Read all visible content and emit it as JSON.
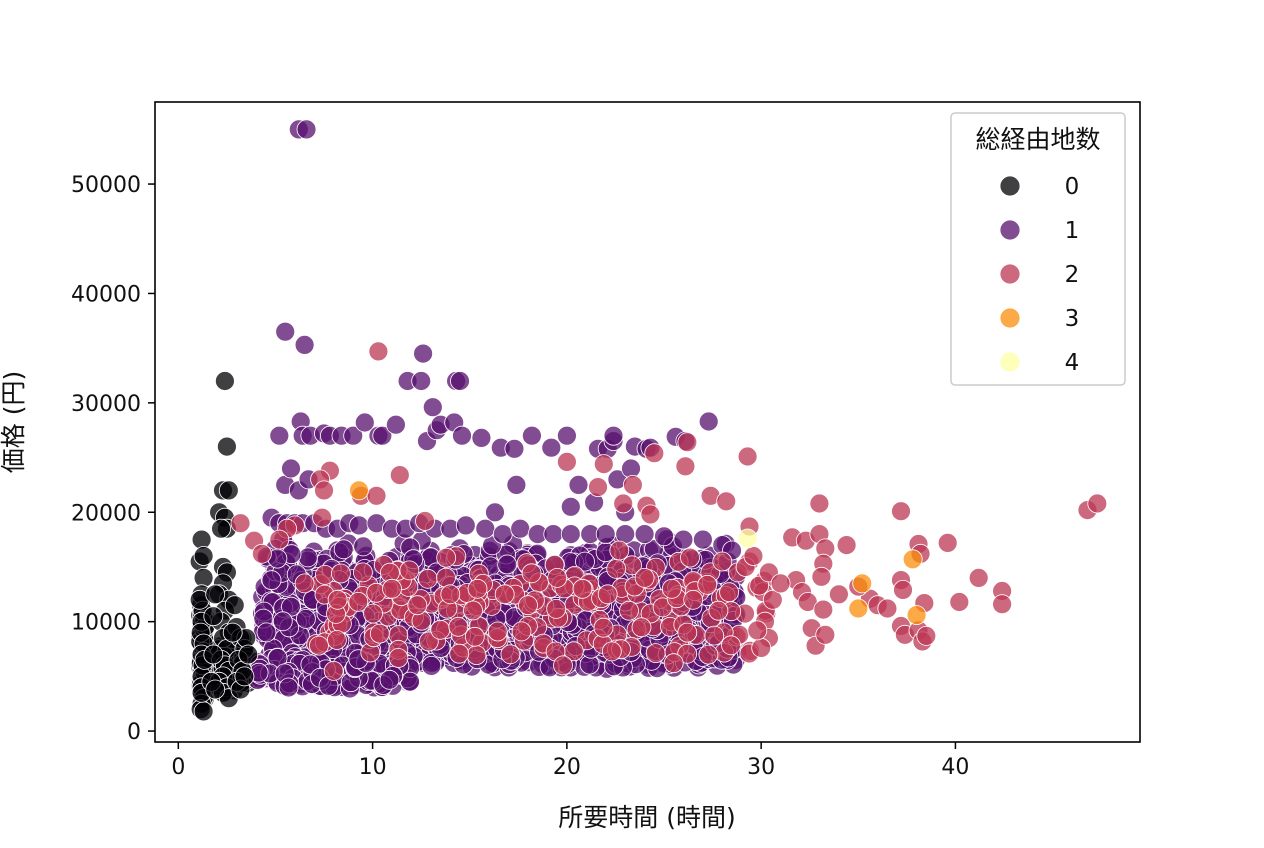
{
  "chart_data": {
    "type": "scatter",
    "title": "",
    "xlabel": "所要時間 (時間)",
    "ylabel": "価格 (円)",
    "xlim": [
      -1.2,
      49.5
    ],
    "ylim": [
      -1000,
      57500
    ],
    "xticks": [
      0,
      10,
      20,
      30,
      40
    ],
    "yticks": [
      0,
      10000,
      20000,
      30000,
      40000,
      50000
    ],
    "grid": false,
    "marker_alpha": 0.75,
    "legend": {
      "title": "総経由地数",
      "placement": "top-right",
      "entries": [
        {
          "label": "0",
          "color": "#000004"
        },
        {
          "label": "1",
          "color": "#57106e"
        },
        {
          "label": "2",
          "color": "#bc3754"
        },
        {
          "label": "3",
          "color": "#f98e09"
        },
        {
          "label": "4",
          "color": "#fcffa4"
        }
      ]
    },
    "series": [
      {
        "name": "0",
        "color": "#000004",
        "points": [
          [
            1.2,
            17500
          ],
          [
            1.1,
            15500
          ],
          [
            1.3,
            14000
          ],
          [
            1.2,
            12500
          ],
          [
            1.25,
            11000
          ],
          [
            1.2,
            10000
          ],
          [
            1.15,
            9000
          ],
          [
            1.3,
            8000
          ],
          [
            1.2,
            7000
          ],
          [
            1.25,
            6000
          ],
          [
            1.2,
            5000
          ],
          [
            1.2,
            4000
          ],
          [
            1.3,
            3000
          ],
          [
            1.2,
            2500
          ],
          [
            1.15,
            2000
          ],
          [
            1.3,
            1800
          ],
          [
            1.35,
            6500
          ],
          [
            1.1,
            12000
          ],
          [
            1.3,
            16000
          ],
          [
            1.2,
            3500
          ],
          [
            2.4,
            32000
          ],
          [
            2.5,
            26000
          ],
          [
            2.3,
            22000
          ],
          [
            2.6,
            22000
          ],
          [
            2.1,
            20000
          ],
          [
            2.4,
            19500
          ],
          [
            2.5,
            18500
          ],
          [
            2.2,
            18500
          ],
          [
            2.3,
            15000
          ],
          [
            2.5,
            14500
          ],
          [
            2.3,
            13500
          ],
          [
            2.1,
            12500
          ],
          [
            2.6,
            12000
          ],
          [
            2.4,
            11000
          ],
          [
            2.2,
            10000
          ],
          [
            2.6,
            9000
          ],
          [
            2.3,
            8500
          ],
          [
            2.5,
            7500
          ],
          [
            2.2,
            6500
          ],
          [
            2.4,
            6000
          ],
          [
            2.6,
            5500
          ],
          [
            2.3,
            5000
          ],
          [
            2.1,
            4500
          ],
          [
            2.5,
            4000
          ],
          [
            2.3,
            3500
          ],
          [
            2.6,
            3000
          ],
          [
            1.8,
            7000
          ],
          [
            1.7,
            4500
          ],
          [
            1.9,
            3800
          ],
          [
            1.8,
            10500
          ],
          [
            1.9,
            12500
          ],
          [
            3.0,
            9500
          ],
          [
            3.2,
            8500
          ],
          [
            3.4,
            7500
          ],
          [
            3.1,
            6500
          ],
          [
            3.3,
            5500
          ],
          [
            3.0,
            4500
          ],
          [
            3.2,
            3800
          ],
          [
            2.9,
            11500
          ],
          [
            3.5,
            8500
          ],
          [
            3.4,
            5000
          ],
          [
            2.8,
            9000
          ],
          [
            3.6,
            7000
          ]
        ]
      },
      {
        "name": "1",
        "color": "#57106e",
        "points": [
          [
            6.2,
            55000
          ],
          [
            6.6,
            55000
          ],
          [
            5.5,
            36500
          ],
          [
            6.5,
            35300
          ],
          [
            5.2,
            27000
          ],
          [
            6.3,
            28300
          ],
          [
            6.4,
            27000
          ],
          [
            6.8,
            27000
          ],
          [
            7.5,
            27200
          ],
          [
            7.8,
            27000
          ],
          [
            8.4,
            27000
          ],
          [
            9.0,
            27000
          ],
          [
            9.6,
            28200
          ],
          [
            10.3,
            27000
          ],
          [
            10.5,
            27000
          ],
          [
            11.2,
            28000
          ],
          [
            11.8,
            32000
          ],
          [
            12.5,
            32000
          ],
          [
            12.6,
            34500
          ],
          [
            12.8,
            26500
          ],
          [
            13.1,
            29600
          ],
          [
            13.3,
            27500
          ],
          [
            13.5,
            28000
          ],
          [
            14.2,
            28200
          ],
          [
            14.3,
            32000
          ],
          [
            14.5,
            32000
          ],
          [
            14.6,
            27000
          ],
          [
            15.6,
            26800
          ],
          [
            16.6,
            25900
          ],
          [
            17.3,
            25800
          ],
          [
            17.4,
            22500
          ],
          [
            18.2,
            27000
          ],
          [
            19.2,
            25900
          ],
          [
            20.0,
            27000
          ],
          [
            20.6,
            22500
          ],
          [
            21.4,
            20900
          ],
          [
            21.6,
            25800
          ],
          [
            22.1,
            25800
          ],
          [
            22.4,
            26500
          ],
          [
            22.4,
            27000
          ],
          [
            22.6,
            23000
          ],
          [
            23.3,
            24000
          ],
          [
            23.5,
            26000
          ],
          [
            24.1,
            25800
          ],
          [
            24.3,
            25900
          ],
          [
            25.6,
            26900
          ],
          [
            26.1,
            26500
          ],
          [
            27.3,
            28300
          ],
          [
            5.5,
            22500
          ],
          [
            5.8,
            24000
          ],
          [
            6.2,
            22000
          ],
          [
            6.7,
            23000
          ],
          [
            16.3,
            20000
          ],
          [
            20.2,
            20500
          ],
          [
            23.0,
            20000
          ],
          [
            4.8,
            19500
          ],
          [
            5.2,
            19000
          ],
          [
            5.6,
            19000
          ],
          [
            6.0,
            19000
          ],
          [
            6.4,
            19000
          ],
          [
            7.0,
            19000
          ],
          [
            7.6,
            18500
          ],
          [
            8.2,
            18500
          ],
          [
            8.8,
            19000
          ],
          [
            9.3,
            18800
          ],
          [
            10.2,
            19000
          ],
          [
            11.0,
            18500
          ],
          [
            11.7,
            18500
          ],
          [
            12.4,
            19000
          ],
          [
            13.2,
            18500
          ],
          [
            14.0,
            18500
          ],
          [
            14.8,
            18800
          ],
          [
            15.8,
            18500
          ],
          [
            16.7,
            18000
          ],
          [
            17.6,
            18500
          ],
          [
            18.5,
            18000
          ],
          [
            19.3,
            18000
          ],
          [
            20.2,
            18000
          ],
          [
            21.2,
            18000
          ],
          [
            22.0,
            18000
          ],
          [
            23.0,
            18000
          ],
          [
            24.0,
            18000
          ],
          [
            25.0,
            17800
          ],
          [
            26.0,
            17500
          ],
          [
            27.0,
            17500
          ],
          [
            28.0,
            17000
          ],
          [
            28.5,
            16500
          ]
        ]
      },
      {
        "name": "2",
        "color": "#bc3754",
        "points": [
          [
            10.3,
            34700
          ],
          [
            11.4,
            23400
          ],
          [
            9.4,
            21500
          ],
          [
            10.2,
            21500
          ],
          [
            7.8,
            23800
          ],
          [
            7.3,
            23000
          ],
          [
            7.5,
            22000
          ],
          [
            7.4,
            19500
          ],
          [
            6.0,
            18800
          ],
          [
            5.6,
            18500
          ],
          [
            5.2,
            17500
          ],
          [
            3.9,
            17400
          ],
          [
            4.3,
            16200
          ],
          [
            3.2,
            19000
          ],
          [
            12.7,
            19200
          ],
          [
            20.0,
            24600
          ],
          [
            21.6,
            22300
          ],
          [
            22.9,
            20800
          ],
          [
            23.4,
            22500
          ],
          [
            24.1,
            20600
          ],
          [
            24.3,
            19800
          ],
          [
            24.5,
            25400
          ],
          [
            26.1,
            24200
          ],
          [
            26.2,
            26400
          ],
          [
            27.4,
            21500
          ],
          [
            28.2,
            21000
          ],
          [
            29.3,
            25100
          ],
          [
            29.4,
            18700
          ],
          [
            21.9,
            24400
          ],
          [
            31.6,
            17700
          ],
          [
            32.3,
            17400
          ],
          [
            33.0,
            20800
          ],
          [
            33.0,
            18000
          ],
          [
            33.3,
            16700
          ],
          [
            33.2,
            15300
          ],
          [
            33.1,
            14100
          ],
          [
            34.4,
            17000
          ],
          [
            35.6,
            12100
          ],
          [
            36.0,
            11500
          ],
          [
            36.5,
            11200
          ],
          [
            31.8,
            13800
          ],
          [
            32.1,
            12700
          ],
          [
            32.4,
            11800
          ],
          [
            32.6,
            9400
          ],
          [
            32.8,
            7800
          ],
          [
            33.2,
            11100
          ],
          [
            33.3,
            8800
          ],
          [
            30.1,
            12700
          ],
          [
            30.2,
            10000
          ],
          [
            30.4,
            8500
          ],
          [
            30.0,
            7600
          ],
          [
            29.8,
            9200
          ],
          [
            29.9,
            13300
          ],
          [
            30.6,
            12000
          ],
          [
            37.2,
            20100
          ],
          [
            37.2,
            13800
          ],
          [
            37.3,
            12900
          ],
          [
            37.2,
            9600
          ],
          [
            37.4,
            8800
          ],
          [
            38.1,
            17100
          ],
          [
            38.2,
            16200
          ],
          [
            38.4,
            11700
          ],
          [
            38.1,
            9200
          ],
          [
            38.3,
            8200
          ],
          [
            38.5,
            8700
          ],
          [
            39.6,
            17200
          ],
          [
            40.2,
            11800
          ],
          [
            41.2,
            14000
          ],
          [
            42.4,
            12800
          ],
          [
            42.4,
            11600
          ],
          [
            46.8,
            20200
          ],
          [
            47.3,
            20800
          ],
          [
            6.5,
            13500
          ],
          [
            8.2,
            12000
          ],
          [
            9.5,
            14500
          ],
          [
            11.0,
            13000
          ],
          [
            12.3,
            11500
          ],
          [
            14.0,
            12500
          ],
          [
            15.4,
            13000
          ],
          [
            16.8,
            12500
          ],
          [
            18.0,
            11500
          ],
          [
            19.5,
            14000
          ],
          [
            20.8,
            13000
          ],
          [
            22.1,
            12500
          ],
          [
            23.2,
            11000
          ],
          [
            24.0,
            14000
          ],
          [
            25.4,
            13000
          ],
          [
            26.5,
            12000
          ],
          [
            27.8,
            11000
          ],
          [
            28.8,
            14500
          ],
          [
            29.2,
            15000
          ],
          [
            29.6,
            16000
          ],
          [
            30.4,
            14500
          ],
          [
            31.0,
            13500
          ],
          [
            34.0,
            12500
          ],
          [
            35.0,
            13200
          ],
          [
            26.2,
            9000
          ],
          [
            25.5,
            6200
          ],
          [
            8.0,
            5500
          ],
          [
            19.8,
            6000
          ],
          [
            22.7,
            16500
          ],
          [
            28.0,
            15500
          ]
        ]
      },
      {
        "name": "3",
        "color": "#f98e09",
        "points": [
          [
            9.3,
            22000
          ],
          [
            35.2,
            13500
          ],
          [
            35.0,
            11200
          ],
          [
            37.8,
            15700
          ],
          [
            38.0,
            10600
          ]
        ]
      },
      {
        "name": "4",
        "color": "#fcffa4",
        "points": [
          [
            29.3,
            17600
          ]
        ]
      }
    ],
    "dense_clusters": [
      {
        "series": "0",
        "x": [
          1.1,
          1.4
        ],
        "y": [
          1800,
          12000
        ],
        "n": 50
      },
      {
        "series": "0",
        "x": [
          2.0,
          3.6
        ],
        "y": [
          3000,
          9000
        ],
        "n": 60
      },
      {
        "series": "1",
        "x": [
          4.3,
          28.8
        ],
        "y": [
          4200,
          17600
        ],
        "n": 1500
      },
      {
        "series": "1",
        "x": [
          4.0,
          12.0
        ],
        "y": [
          3500,
          7000
        ],
        "n": 120
      },
      {
        "series": "2",
        "x": [
          7.0,
          30.5
        ],
        "y": [
          5500,
          16500
        ],
        "n": 200
      }
    ]
  }
}
